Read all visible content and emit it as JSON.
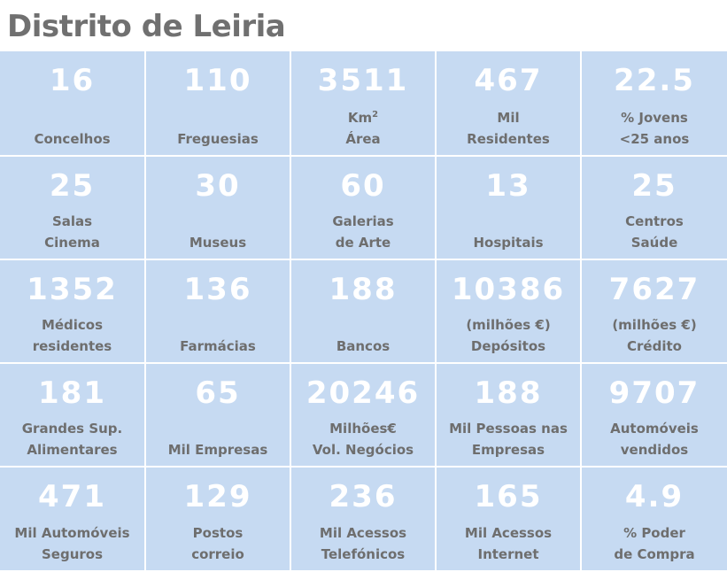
{
  "title": "Distrito de Leiria",
  "rows": [
    [
      {
        "value": "16",
        "line1": "",
        "line2": "Concelhos"
      },
      {
        "value": "110",
        "line1": "",
        "line2": "Freguesias"
      },
      {
        "value": "3511",
        "line1": "Km",
        "sup": "2",
        "line2": "Área"
      },
      {
        "value": "467",
        "line1": "Mil",
        "line2": "Residentes"
      },
      {
        "value": "22.5",
        "line1": "% Jovens",
        "line2": "<25 anos"
      }
    ],
    [
      {
        "value": "25",
        "line1": "Salas",
        "line2": "Cinema"
      },
      {
        "value": "30",
        "line1": "",
        "line2": "Museus"
      },
      {
        "value": "60",
        "line1": "Galerias",
        "line2": "de Arte"
      },
      {
        "value": "13",
        "line1": "",
        "line2": "Hospitais"
      },
      {
        "value": "25",
        "line1": "Centros",
        "line2": "Saúde"
      }
    ],
    [
      {
        "value": "1352",
        "line1": "Médicos",
        "line2": "residentes"
      },
      {
        "value": "136",
        "line1": "",
        "line2": "Farmácias"
      },
      {
        "value": "188",
        "line1": "",
        "line2": "Bancos"
      },
      {
        "value": "10386",
        "line1": "(milhões €)",
        "line2": "Depósitos"
      },
      {
        "value": "7627",
        "line1": "(milhões €)",
        "line2": "Crédito"
      }
    ],
    [
      {
        "value": "181",
        "line1": "Grandes Sup.",
        "line2": "Alimentares"
      },
      {
        "value": "65",
        "line1": "",
        "line2": "Mil Empresas"
      },
      {
        "value": "20246",
        "line1": "Milhões€",
        "line2": "Vol. Negócios"
      },
      {
        "value": "188",
        "line1": "Mil Pessoas nas",
        "line2": "Empresas"
      },
      {
        "value": "9707",
        "line1": "Automóveis",
        "line2": "vendidos"
      }
    ],
    [
      {
        "value": "471",
        "line1": "Mil Automóveis",
        "line2": "Seguros"
      },
      {
        "value": "129",
        "line1": "Postos",
        "line2": "correio"
      },
      {
        "value": "236",
        "line1": "Mil Acessos",
        "line2": "Telefónicos"
      },
      {
        "value": "165",
        "line1": "Mil Acessos",
        "line2": "Internet"
      },
      {
        "value": "4.9",
        "line1": "% Poder",
        "line2": "de Compra"
      }
    ]
  ]
}
